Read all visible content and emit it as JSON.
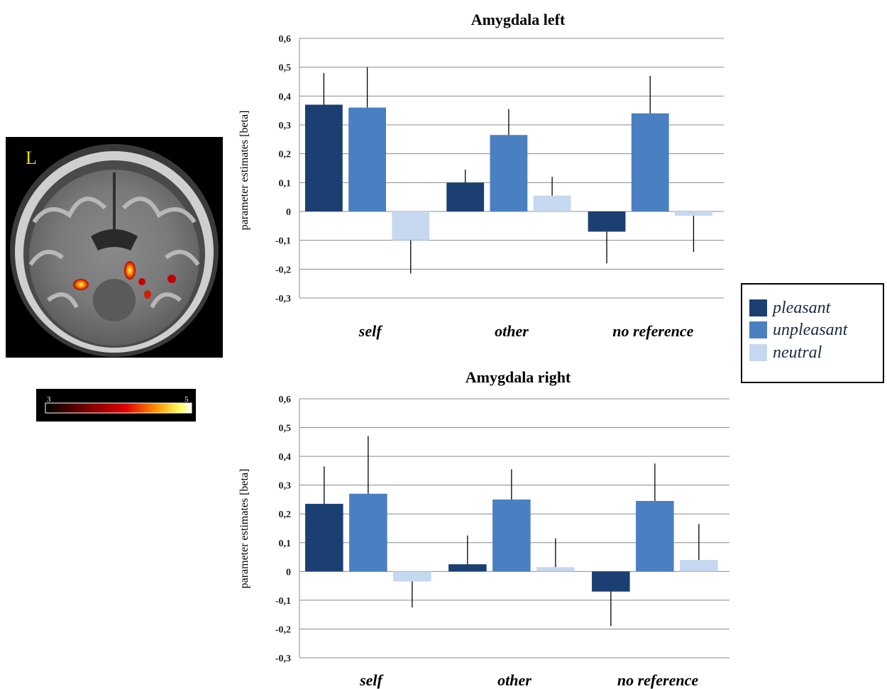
{
  "brain_image": {
    "orientation_label": "L",
    "colorbar": {
      "min_label": "3",
      "max_label": "5"
    }
  },
  "legend": {
    "items": [
      {
        "label": "pleasant",
        "color": "#1b3f72"
      },
      {
        "label": "unpleasant",
        "color": "#4a80c2"
      },
      {
        "label": "neutral",
        "color": "#c5d8ef"
      }
    ]
  },
  "chart_data": [
    {
      "type": "bar",
      "title": "Amygdala left",
      "ylabel": "parameter estimates [beta]",
      "xlabel": "",
      "ylim": [
        -0.3,
        0.6
      ],
      "yticks": [
        "0,6",
        "0,5",
        "0,4",
        "0,3",
        "0,2",
        "0,1",
        "0",
        "-0,1",
        "-0,2",
        "-0,3"
      ],
      "categories": [
        "self",
        "other",
        "no reference"
      ],
      "series": [
        {
          "name": "pleasant",
          "color": "#1b3f72",
          "values": [
            0.37,
            0.1,
            -0.07
          ],
          "error_upper": [
            0.48,
            0.145,
            -0.07
          ],
          "error_lower": [
            0.37,
            0.1,
            -0.18
          ]
        },
        {
          "name": "unpleasant",
          "color": "#4a80c2",
          "values": [
            0.36,
            0.265,
            0.34
          ],
          "error_upper": [
            0.5,
            0.355,
            0.47
          ],
          "error_lower": [
            0.36,
            0.265,
            0.34
          ]
        },
        {
          "name": "neutral",
          "color": "#c5d8ef",
          "values": [
            -0.1,
            0.055,
            -0.015
          ],
          "error_upper": [
            -0.1,
            0.12,
            -0.015
          ],
          "error_lower": [
            -0.215,
            0.055,
            -0.14
          ]
        }
      ],
      "grid": true
    },
    {
      "type": "bar",
      "title": "Amygdala right",
      "ylabel": "parameter estimates [beta]",
      "xlabel": "",
      "ylim": [
        -0.3,
        0.6
      ],
      "yticks": [
        "0,6",
        "0,5",
        "0,4",
        "0,3",
        "0,2",
        "0,1",
        "0",
        "-0,1",
        "-0,2",
        "-0,3"
      ],
      "categories": [
        "self",
        "other",
        "no reference"
      ],
      "series": [
        {
          "name": "pleasant",
          "color": "#1b3f72",
          "values": [
            0.235,
            0.025,
            -0.07
          ],
          "error_upper": [
            0.365,
            0.125,
            -0.07
          ],
          "error_lower": [
            0.235,
            0.025,
            -0.19
          ]
        },
        {
          "name": "unpleasant",
          "color": "#4a80c2",
          "values": [
            0.27,
            0.25,
            0.245
          ],
          "error_upper": [
            0.47,
            0.355,
            0.375
          ],
          "error_lower": [
            0.27,
            0.25,
            0.245
          ]
        },
        {
          "name": "neutral",
          "color": "#c5d8ef",
          "values": [
            -0.035,
            0.015,
            0.04
          ],
          "error_upper": [
            -0.035,
            0.115,
            0.165
          ],
          "error_lower": [
            -0.125,
            0.015,
            0.04
          ]
        }
      ],
      "grid": true
    }
  ]
}
